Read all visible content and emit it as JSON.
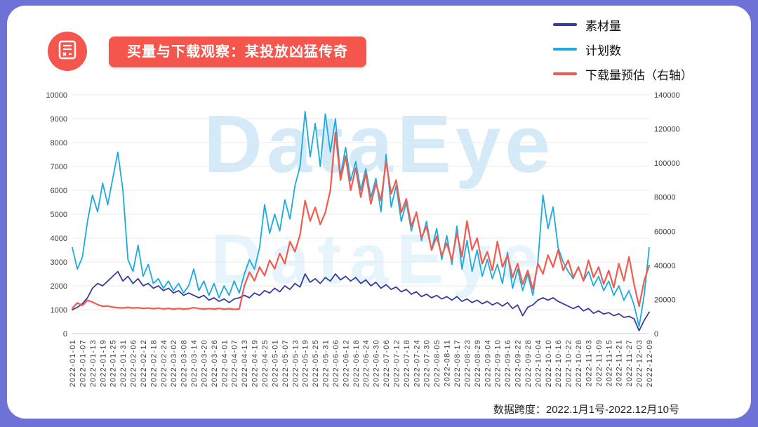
{
  "header": {
    "title": "买量与下载观察：某投放凶猛传奇"
  },
  "watermark": "DataEye",
  "footer": {
    "note": "数据跨度：2022.1月1号-2022.12月10号"
  },
  "colors": {
    "frame": "#6e71d5",
    "banner": "#f4564d",
    "grid": "#e8e8e8"
  },
  "chart_data": {
    "type": "line",
    "x_total_days": 342,
    "x_step_days": 3,
    "x_tick_step_days": 6,
    "x_tick_labels": [
      "2022-01-01",
      "2022-01-07",
      "2022-01-13",
      "2022-01-19",
      "2022-01-25",
      "2022-01-31",
      "2022-02-06",
      "2022-02-12",
      "2022-02-18",
      "2022-02-24",
      "2022-03-02",
      "2022-03-08",
      "2022-03-14",
      "2022-03-20",
      "2022-03-26",
      "2022-04-01",
      "2022-04-07",
      "2022-04-13",
      "2022-04-19",
      "2022-04-25",
      "2022-05-01",
      "2022-05-07",
      "2022-05-13",
      "2022-05-19",
      "2022-05-25",
      "2022-05-31",
      "2022-06-06",
      "2022-06-12",
      "2022-06-18",
      "2022-06-24",
      "2022-06-30",
      "2022-07-06",
      "2022-07-12",
      "2022-07-18",
      "2022-07-24",
      "2022-07-30",
      "2022-08-05",
      "2022-08-11",
      "2022-08-17",
      "2022-08-23",
      "2022-08-29",
      "2022-09-04",
      "2022-09-10",
      "2022-09-16",
      "2022-09-22",
      "2022-09-28",
      "2022-10-04",
      "2022-10-10",
      "2022-10-16",
      "2022-10-22",
      "2022-10-28",
      "2022-11-03",
      "2022-11-09",
      "2022-11-15",
      "2022-11-21",
      "2022-11-27",
      "2022-12-03",
      "2022-12-09"
    ],
    "left_axis": {
      "min": 0,
      "max": 10000,
      "step": 1000
    },
    "right_axis": {
      "min": 0,
      "max": 140000,
      "step": 20000
    },
    "grid": "horizontal",
    "legend_position": "top-right",
    "series": [
      {
        "name": "素材量",
        "axis": "left",
        "color": "#383c9e",
        "values": [
          1000,
          1100,
          1250,
          1500,
          1900,
          2100,
          2000,
          2200,
          2400,
          2600,
          2200,
          2400,
          2100,
          2300,
          2000,
          2100,
          1900,
          2000,
          1800,
          1900,
          1700,
          1800,
          1600,
          1700,
          1600,
          1500,
          1600,
          1400,
          1500,
          1350,
          1450,
          1300,
          1450,
          1500,
          1600,
          1500,
          1700,
          1600,
          1800,
          1700,
          1900,
          1750,
          2000,
          1850,
          2100,
          1950,
          2500,
          2150,
          2300,
          2100,
          2350,
          2200,
          2500,
          2250,
          2400,
          2200,
          2350,
          2100,
          2250,
          2000,
          2150,
          1900,
          2050,
          1850,
          1950,
          1750,
          1850,
          1650,
          1750,
          1550,
          1650,
          1500,
          1600,
          1450,
          1550,
          1400,
          1550,
          1350,
          1450,
          1300,
          1400,
          1250,
          1350,
          1200,
          1300,
          1150,
          1300,
          1050,
          1200,
          750,
          1100,
          1200,
          1400,
          1500,
          1400,
          1500,
          1350,
          1250,
          1150,
          1050,
          1150,
          950,
          1050,
          850,
          950,
          820,
          880,
          750,
          830,
          680,
          720,
          620,
          120,
          550,
          900
        ]
      },
      {
        "name": "计划数",
        "axis": "left",
        "color": "#1aabdf",
        "values": [
          3600,
          2700,
          3200,
          4700,
          5800,
          5100,
          6300,
          5400,
          6500,
          7600,
          6000,
          3100,
          2600,
          3700,
          2400,
          2900,
          2100,
          2300,
          1900,
          2200,
          1800,
          2100,
          1700,
          2000,
          2700,
          1800,
          2200,
          1600,
          2100,
          1500,
          2000,
          1600,
          2200,
          1700,
          2500,
          3100,
          2700,
          3600,
          5400,
          4200,
          5000,
          4300,
          5600,
          4800,
          6200,
          7000,
          9300,
          7400,
          8800,
          7000,
          9200,
          7600,
          9000,
          6600,
          7800,
          6400,
          7200,
          6000,
          6900,
          5700,
          6500,
          5100,
          7500,
          5300,
          6200,
          4700,
          5500,
          4300,
          5100,
          3900,
          4700,
          3500,
          4400,
          3100,
          4100,
          2900,
          4500,
          2700,
          3900,
          2600,
          3500,
          2400,
          3100,
          2300,
          2900,
          2100,
          3400,
          1900,
          2700,
          1800,
          2500,
          1600,
          3000,
          5800,
          4400,
          5300,
          3600,
          3000,
          2600,
          2300,
          2800,
          2200,
          2600,
          2000,
          2400,
          1800,
          2200,
          1600,
          2000,
          1400,
          1800,
          1200,
          300,
          1600,
          3600
        ]
      },
      {
        "name": "下载量预估（右轴）",
        "axis": "right",
        "color": "#f25b4f",
        "values": [
          15000,
          18000,
          16500,
          19500,
          18500,
          17000,
          16000,
          16200,
          15500,
          15200,
          15000,
          15400,
          15000,
          15200,
          14800,
          15000,
          14600,
          14900,
          14500,
          14800,
          14400,
          14700,
          14400,
          14600,
          15200,
          14700,
          14400,
          14700,
          14400,
          14800,
          14300,
          14600,
          14200,
          14400,
          28000,
          36000,
          31000,
          39000,
          34000,
          43000,
          38000,
          47000,
          41000,
          54000,
          48000,
          58000,
          78000,
          66000,
          74000,
          64000,
          71000,
          84000,
          118000,
          90000,
          104000,
          84000,
          97000,
          80000,
          94000,
          76000,
          88000,
          78000,
          101000,
          82000,
          90000,
          71000,
          79000,
          63000,
          71000,
          56000,
          63000,
          49000,
          57000,
          46000,
          53000,
          43000,
          59000,
          45000,
          66000,
          49000,
          56000,
          41000,
          48000,
          37000,
          54000,
          39000,
          46000,
          33000,
          41000,
          29000,
          37000,
          26000,
          41000,
          35000,
          46000,
          39000,
          49000,
          37000,
          43000,
          33000,
          39000,
          31000,
          43000,
          33000,
          39000,
          29000,
          37000,
          27000,
          41000,
          31000,
          45000,
          29000,
          16000,
          31000,
          40000
        ]
      }
    ]
  }
}
